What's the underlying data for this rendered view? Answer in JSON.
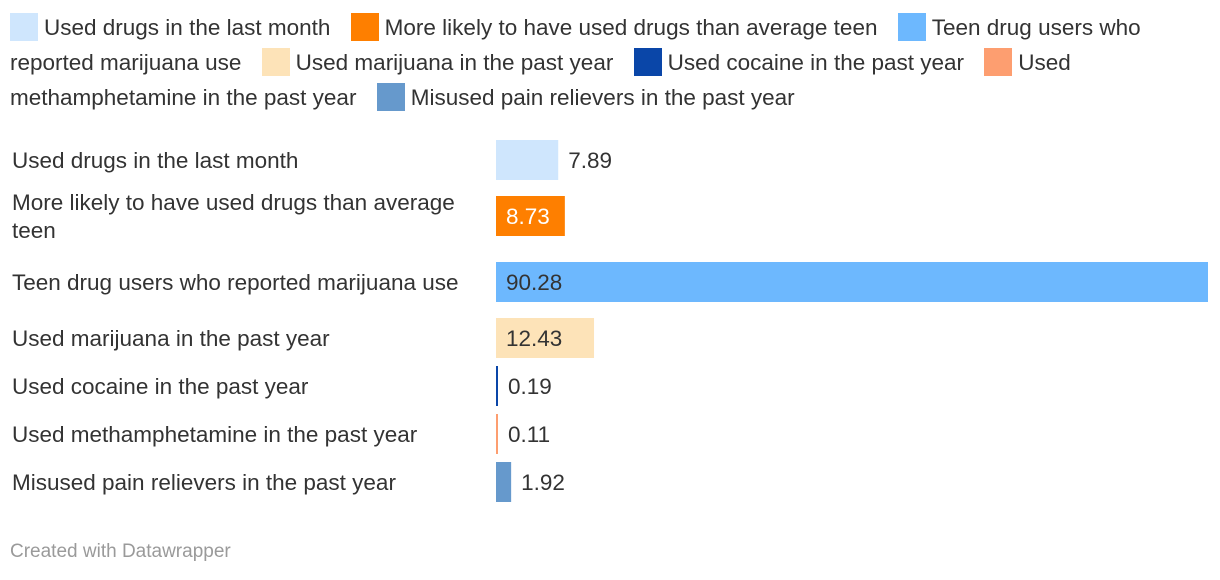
{
  "chart_data": {
    "type": "bar",
    "orientation": "horizontal",
    "categories": [
      "Used drugs in the last month",
      "More likely to have used drugs than average teen",
      "Teen drug users who reported marijuana use",
      "Used marijuana in the past year",
      "Used cocaine in the past year",
      "Used methamphetamine in the past year",
      "Misused pain relievers in the past year"
    ],
    "values": [
      7.89,
      8.73,
      90.28,
      12.43,
      0.19,
      0.11,
      1.92
    ],
    "value_labels": [
      "7.89",
      "8.73",
      "90.28",
      "12.43",
      "0.19",
      "0.11",
      "1.92"
    ],
    "colors": [
      "#cfe6fd",
      "#fe7f00",
      "#6db8fe",
      "#fde3b8",
      "#0a46a8",
      "#fd9e70",
      "#6699cc"
    ],
    "legend": {
      "position": "top",
      "entries": [
        {
          "label": "Used drugs in the last month",
          "color": "#cfe6fd"
        },
        {
          "label": "More likely to have used drugs than average teen",
          "color": "#fe7f00"
        },
        {
          "label": "Teen drug users who reported marijuana use",
          "color": "#6db8fe"
        },
        {
          "label": "Used marijuana in the past year",
          "color": "#fde3b8"
        },
        {
          "label": "Used cocaine in the past year",
          "color": "#0a46a8"
        },
        {
          "label": "Used methamphetamine in the past year",
          "color": "#fd9e70"
        },
        {
          "label": "Misused pain relievers in the past year",
          "color": "#6699cc"
        }
      ]
    },
    "xlim": [
      0,
      90.28
    ],
    "grid": false,
    "title": "",
    "xlabel": "",
    "ylabel": ""
  },
  "footer": {
    "credit": "Created with Datawrapper"
  }
}
